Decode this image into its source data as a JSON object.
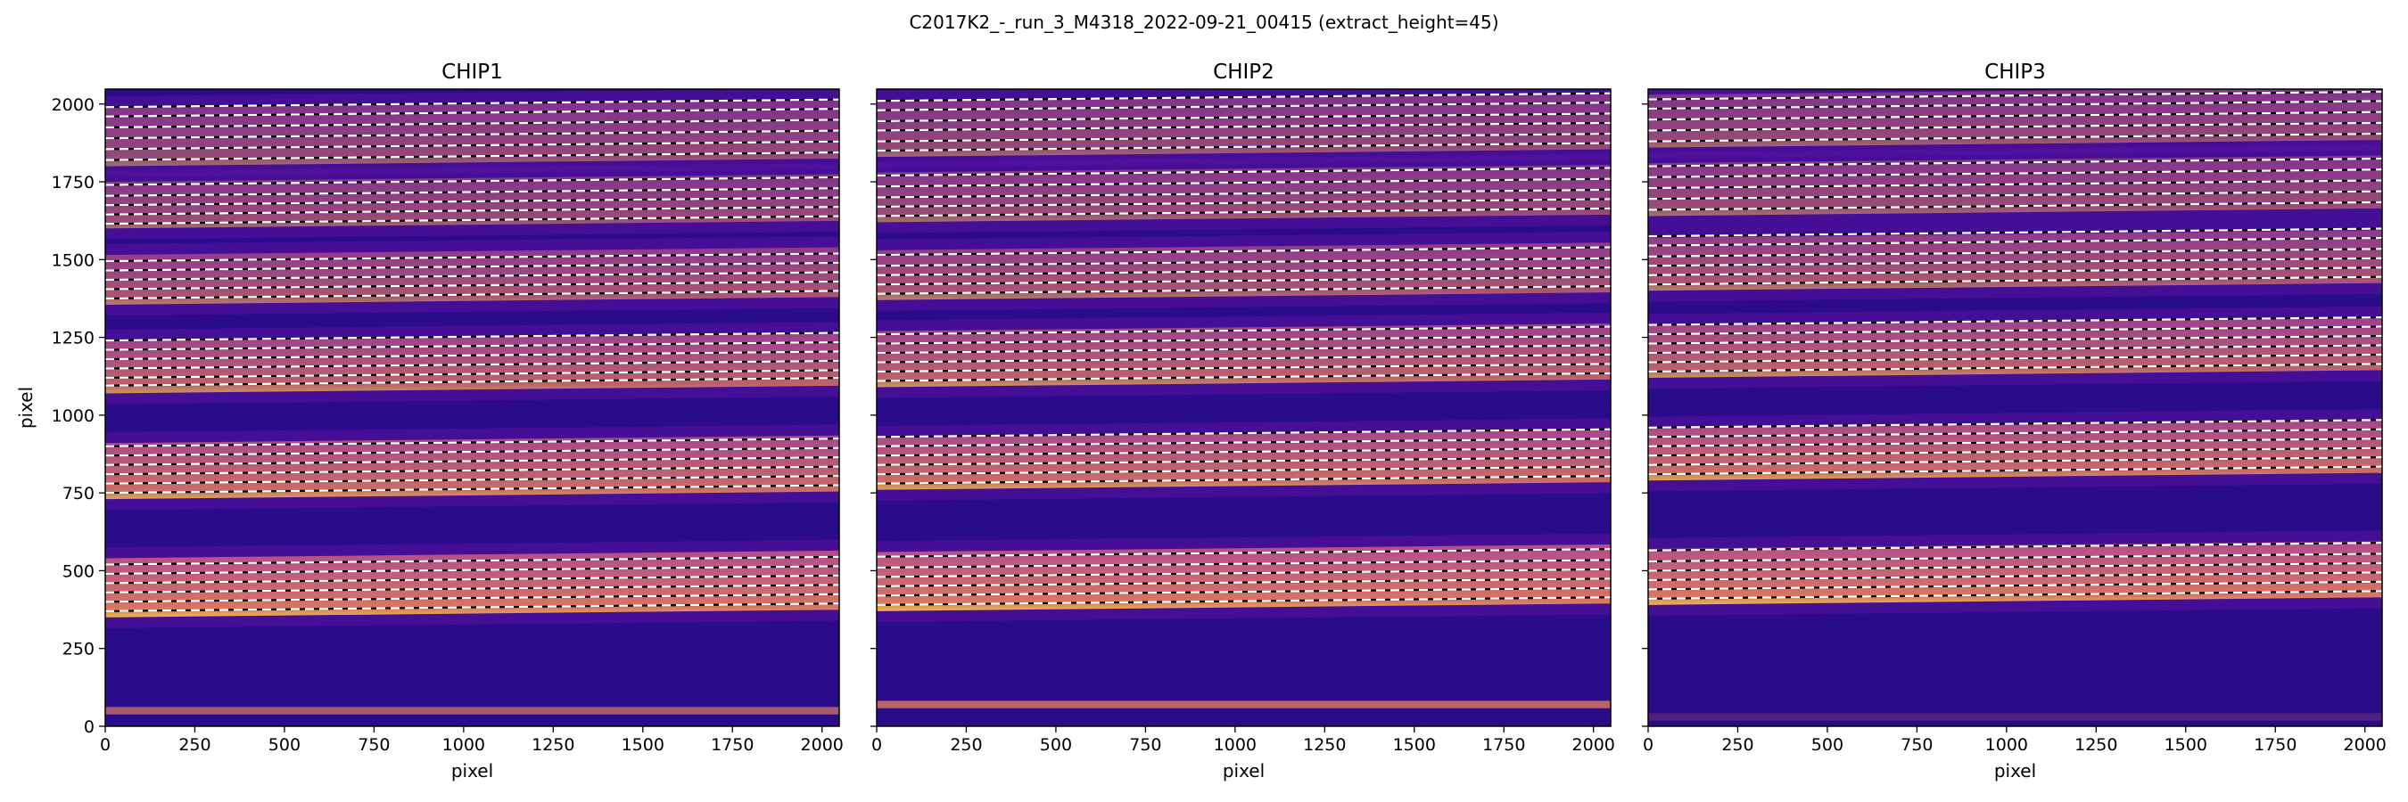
{
  "figure": {
    "suptitle": "C2017K2_-_run_3_M4318_2022-09-21_00415  (extract_height=45)"
  },
  "colors": {
    "background_low": "#2a0c8a",
    "background_mid": "#5a13a0",
    "order_band": "#b84f8d",
    "order_band_bright": "#e07a5f",
    "order_edge": "#f2c04a",
    "trace_line_white": "#ffffff",
    "trace_line_black": "#000000"
  },
  "chart_data": [
    {
      "type": "heatmap",
      "title": "CHIP1",
      "xlabel": "pixel",
      "ylabel": "pixel",
      "xlim": [
        0,
        2048
      ],
      "ylim": [
        0,
        2048
      ],
      "xticks": [
        0,
        250,
        500,
        750,
        1000,
        1250,
        1500,
        1750,
        2000
      ],
      "yticks": [
        0,
        250,
        500,
        750,
        1000,
        1250,
        1500,
        1750,
        2000
      ],
      "colormap": "plasma",
      "orders": [
        {
          "low": 350,
          "high": 540,
          "slope": 0.012,
          "brightness": 1.0
        },
        {
          "low": 730,
          "high": 910,
          "slope": 0.012,
          "brightness": 0.85
        },
        {
          "low": 1070,
          "high": 1240,
          "slope": 0.012,
          "brightness": 0.7
        },
        {
          "low": 1355,
          "high": 1515,
          "slope": 0.012,
          "brightness": 0.5
        },
        {
          "low": 1600,
          "high": 1750,
          "slope": 0.012,
          "brightness": 0.35
        },
        {
          "low": 1800,
          "high": 1990,
          "slope": 0.012,
          "brightness": 0.3
        }
      ],
      "edge_band": {
        "y": 50,
        "brightness": 0.7
      },
      "trace_lines": [
        370,
        400,
        430,
        460,
        490,
        520,
        750,
        780,
        810,
        840,
        870,
        900,
        1095,
        1120,
        1150,
        1180,
        1210,
        1240,
        1375,
        1405,
        1435,
        1465,
        1495,
        1615,
        1645,
        1675,
        1705,
        1740,
        1820,
        1855,
        1890,
        1925,
        1960,
        1990
      ]
    },
    {
      "type": "heatmap",
      "title": "CHIP2",
      "xlabel": "pixel",
      "ylabel": "",
      "xlim": [
        0,
        2048
      ],
      "ylim": [
        0,
        2048
      ],
      "xticks": [
        0,
        250,
        500,
        750,
        1000,
        1250,
        1500,
        1750,
        2000
      ],
      "yticks": [
        0,
        250,
        500,
        750,
        1000,
        1250,
        1500,
        1750,
        2000
      ],
      "colormap": "plasma",
      "orders": [
        {
          "low": 370,
          "high": 560,
          "slope": 0.012,
          "brightness": 1.0
        },
        {
          "low": 760,
          "high": 930,
          "slope": 0.012,
          "brightness": 0.85
        },
        {
          "low": 1090,
          "high": 1270,
          "slope": 0.012,
          "brightness": 0.7
        },
        {
          "low": 1370,
          "high": 1530,
          "slope": 0.012,
          "brightness": 0.5
        },
        {
          "low": 1620,
          "high": 1780,
          "slope": 0.012,
          "brightness": 0.35
        },
        {
          "low": 1830,
          "high": 2010,
          "slope": 0.012,
          "brightness": 0.3
        }
      ],
      "edge_band": {
        "y": 70,
        "brightness": 0.8
      },
      "trace_lines": [
        390,
        420,
        450,
        480,
        510,
        545,
        780,
        810,
        840,
        870,
        900,
        930,
        1110,
        1140,
        1170,
        1200,
        1230,
        1260,
        1390,
        1420,
        1450,
        1480,
        1515,
        1640,
        1670,
        1700,
        1735,
        1770,
        1850,
        1880,
        1915,
        1945,
        1980,
        2010
      ]
    },
    {
      "type": "heatmap",
      "title": "CHIP3",
      "xlabel": "pixel",
      "ylabel": "",
      "xlim": [
        0,
        2048
      ],
      "ylim": [
        0,
        2048
      ],
      "xticks": [
        0,
        250,
        500,
        750,
        1000,
        1250,
        1500,
        1750,
        2000
      ],
      "yticks": [
        0,
        250,
        500,
        750,
        1000,
        1250,
        1500,
        1750,
        2000
      ],
      "colormap": "plasma",
      "orders": [
        {
          "low": 390,
          "high": 570,
          "slope": 0.012,
          "brightness": 1.0
        },
        {
          "low": 790,
          "high": 960,
          "slope": 0.012,
          "brightness": 0.85
        },
        {
          "low": 1120,
          "high": 1290,
          "slope": 0.012,
          "brightness": 0.7
        },
        {
          "low": 1400,
          "high": 1570,
          "slope": 0.012,
          "brightness": 0.5
        },
        {
          "low": 1640,
          "high": 1810,
          "slope": 0.012,
          "brightness": 0.35
        },
        {
          "low": 1860,
          "high": 2030,
          "slope": 0.012,
          "brightness": 0.3
        }
      ],
      "edge_band": {
        "y": 30,
        "brightness": 0.2
      },
      "trace_lines": [
        410,
        440,
        470,
        500,
        530,
        565,
        810,
        840,
        870,
        900,
        930,
        960,
        1140,
        1170,
        1200,
        1230,
        1260,
        1290,
        1420,
        1450,
        1480,
        1510,
        1545,
        1575,
        1660,
        1695,
        1730,
        1765,
        1800,
        1880,
        1915,
        1950,
        1985,
        2015
      ]
    }
  ]
}
